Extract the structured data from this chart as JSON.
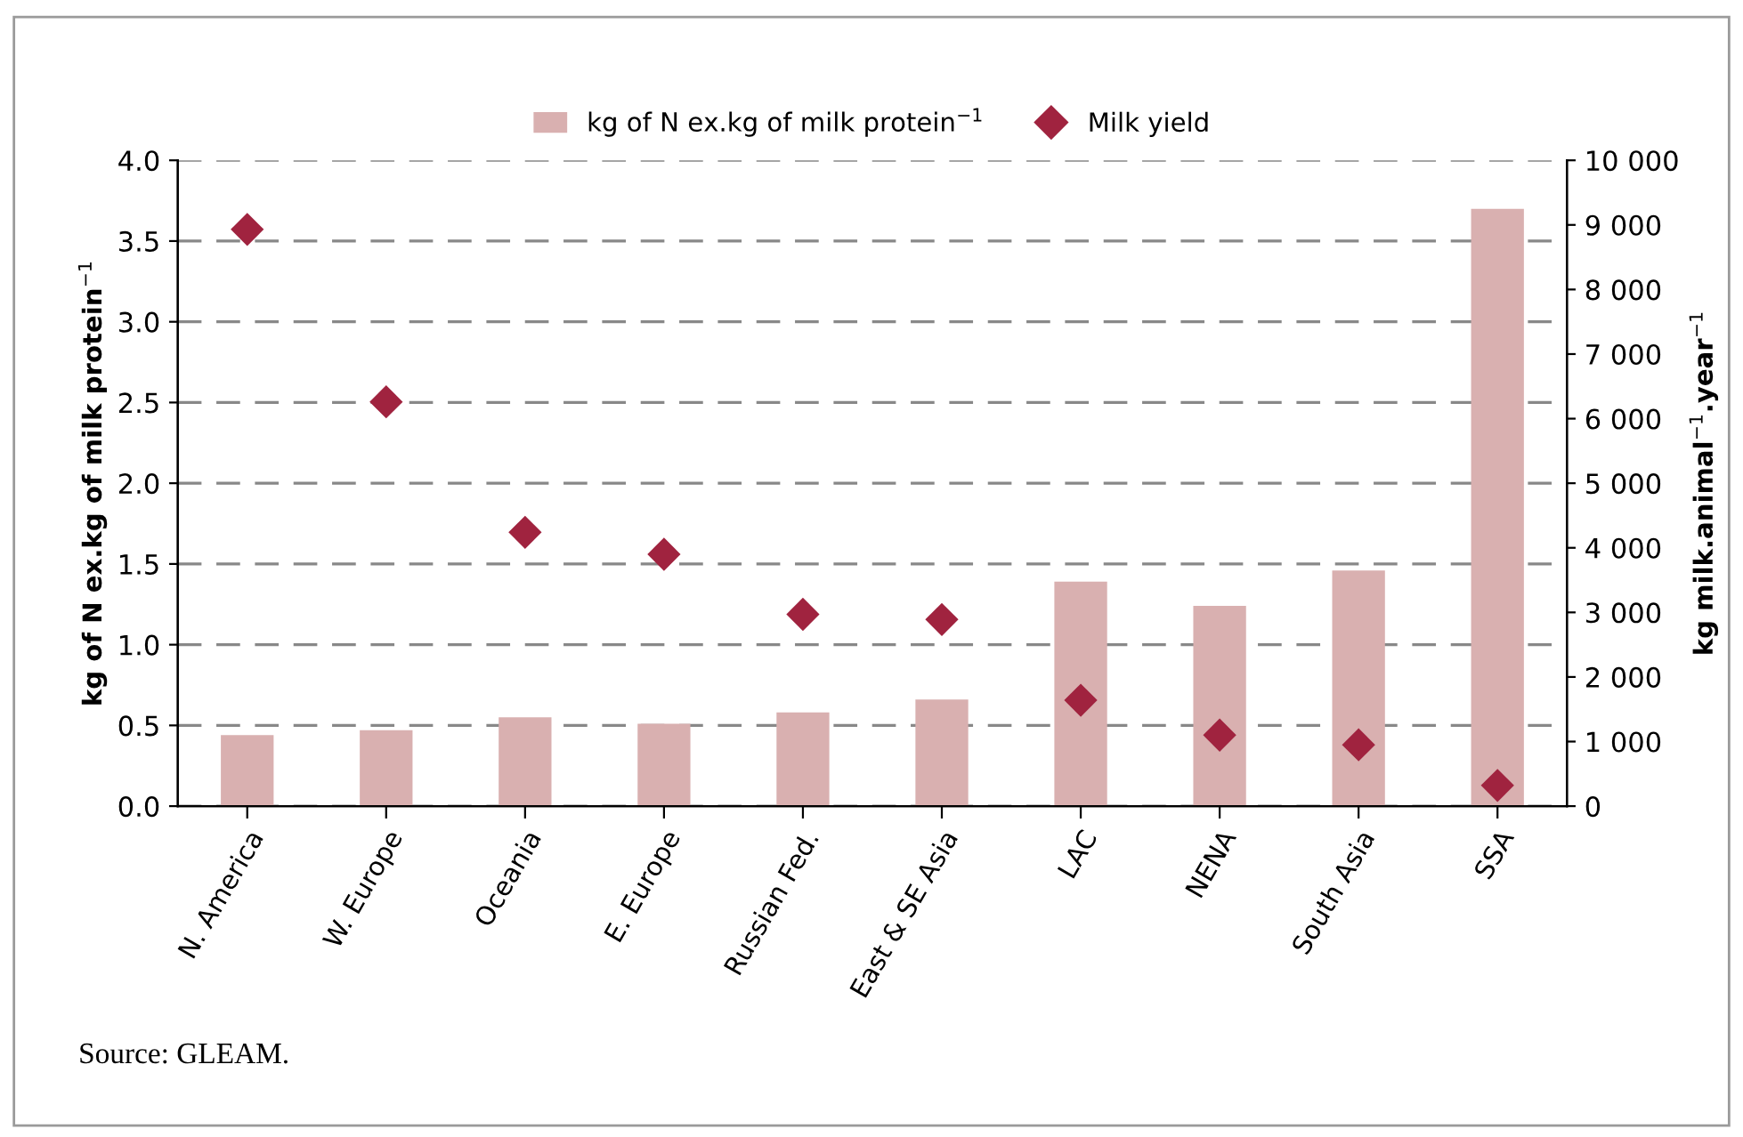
{
  "chart_data": {
    "type": "bar",
    "categories": [
      "N. America",
      "W. Europe",
      "Oceania",
      "E. Europe",
      "Russian Fed.",
      "East & SE Asia",
      "LAC",
      "NENA",
      "South Asia",
      "SSA"
    ],
    "series": [
      {
        "name": "kg of N ex.kg of milk protein$^{−1}$",
        "color": "#d9b0b0",
        "values": [
          0.44,
          0.47,
          0.55,
          0.51,
          0.58,
          0.66,
          1.39,
          1.24,
          1.46,
          3.7
        ]
      },
      {
        "name": "Milk yield",
        "type": "scatter",
        "axis": "y2",
        "marker": "diamond",
        "color": "#a0233f",
        "values": [
          8930,
          6260,
          4240,
          3900,
          2970,
          2890,
          1640,
          1100,
          950,
          320
        ]
      }
    ],
    "ylabel": "kg of N ex.kg of milk protein$^{−1}$",
    "y2label": "kg milk.animal$^{−1}$.year$^{−1}$",
    "ylim": [
      0,
      4
    ],
    "yticks": [
      {
        "value": 0,
        "label": "0.0"
      },
      {
        "value": 0.5,
        "label": "0.5"
      },
      {
        "value": 1,
        "label": "1.0"
      },
      {
        "value": 1.5,
        "label": "1.5"
      },
      {
        "value": 2,
        "label": "2.0"
      },
      {
        "value": 2.5,
        "label": "2.5"
      },
      {
        "value": 3,
        "label": "3.0"
      },
      {
        "value": 3.5,
        "label": "3.5"
      },
      {
        "value": 4,
        "label": "4.0"
      }
    ],
    "y2lim": [
      0,
      10000
    ],
    "y2ticks": [
      0,
      {
        "value": 1000,
        "label": "1 000"
      },
      {
        "value": 2000,
        "label": "2 000"
      },
      {
        "value": 3000,
        "label": "3 000"
      },
      {
        "value": 4000,
        "label": "4 000"
      },
      {
        "value": 5000,
        "label": "5 000"
      },
      {
        "value": 6000,
        "label": "6 000"
      },
      {
        "value": 7000,
        "label": "7 000"
      },
      {
        "value": 8000,
        "label": "8 000"
      },
      {
        "value": 9000,
        "label": "9 000"
      },
      {
        "value": 10000,
        "label": "10 000"
      }
    ],
    "grid": "y",
    "legend": "top",
    "annotations": [
      "Source: GLEAM."
    ]
  }
}
